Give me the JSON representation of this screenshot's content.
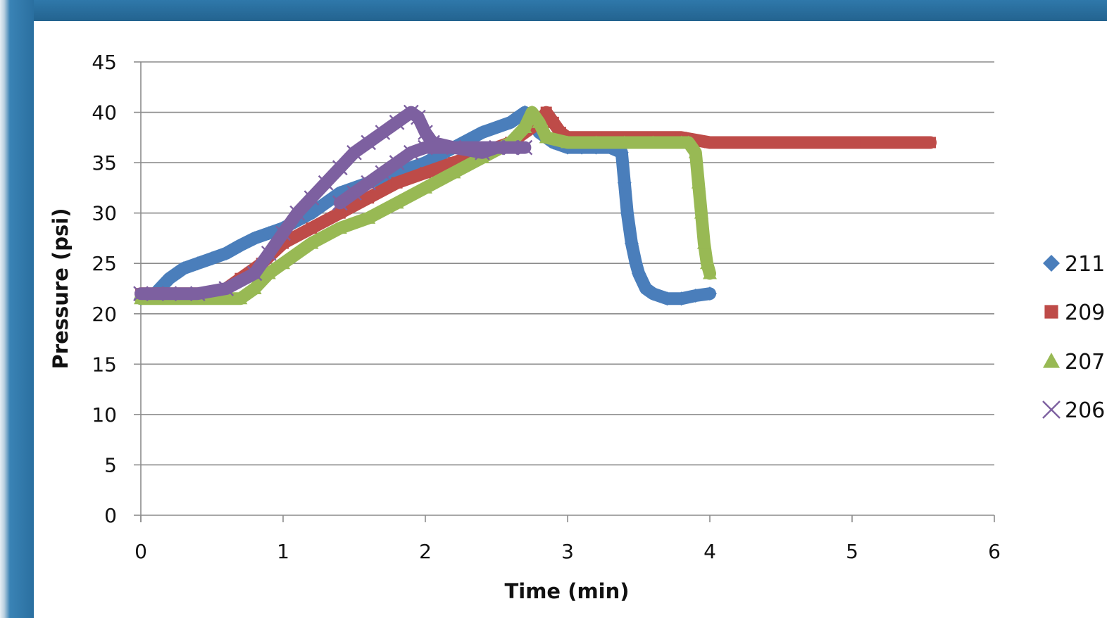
{
  "chart_data": {
    "type": "scatter",
    "xlabel": "Time (min)",
    "ylabel": "Pressure (psi)",
    "xlim": [
      0,
      6
    ],
    "ylim": [
      0,
      45
    ],
    "xticks": [
      "0",
      "1",
      "2",
      "3",
      "4",
      "5",
      "6"
    ],
    "yticks": [
      "0",
      "5",
      "10",
      "15",
      "20",
      "25",
      "30",
      "35",
      "40",
      "45"
    ],
    "grid": "horizontal",
    "legend_position": "right",
    "series": [
      {
        "name": "211",
        "color": "#4a7ebb",
        "marker": "diamond",
        "points": [
          [
            0.0,
            21.5
          ],
          [
            0.1,
            22
          ],
          [
            0.2,
            23.5
          ],
          [
            0.3,
            24.5
          ],
          [
            0.4,
            25
          ],
          [
            0.5,
            25.5
          ],
          [
            0.6,
            26
          ],
          [
            0.7,
            26.8
          ],
          [
            0.8,
            27.5
          ],
          [
            0.9,
            28
          ],
          [
            1.0,
            28.5
          ],
          [
            1.2,
            30
          ],
          [
            1.4,
            32
          ],
          [
            1.6,
            33
          ],
          [
            1.8,
            34
          ],
          [
            2.0,
            35
          ],
          [
            2.2,
            36.5
          ],
          [
            2.4,
            38
          ],
          [
            2.6,
            39
          ],
          [
            2.7,
            40
          ],
          [
            2.8,
            38
          ],
          [
            2.9,
            37
          ],
          [
            3.0,
            36.5
          ],
          [
            3.1,
            36.5
          ],
          [
            3.2,
            36.5
          ],
          [
            3.3,
            36.5
          ],
          [
            3.38,
            36
          ],
          [
            3.4,
            33
          ],
          [
            3.42,
            30
          ],
          [
            3.45,
            27
          ],
          [
            3.48,
            25
          ],
          [
            3.5,
            24
          ],
          [
            3.55,
            22.5
          ],
          [
            3.6,
            22
          ],
          [
            3.7,
            21.5
          ],
          [
            3.8,
            21.5
          ],
          [
            3.9,
            21.8
          ],
          [
            4.0,
            22
          ]
        ]
      },
      {
        "name": "209",
        "color": "#be4b48",
        "marker": "square",
        "points": [
          [
            0.0,
            22
          ],
          [
            0.2,
            22
          ],
          [
            0.4,
            22
          ],
          [
            0.55,
            22
          ],
          [
            0.7,
            23.5
          ],
          [
            0.85,
            25
          ],
          [
            1.0,
            27
          ],
          [
            1.2,
            28.5
          ],
          [
            1.4,
            30
          ],
          [
            1.6,
            31.5
          ],
          [
            1.8,
            33
          ],
          [
            2.0,
            34
          ],
          [
            2.2,
            35
          ],
          [
            2.4,
            36
          ],
          [
            2.6,
            37
          ],
          [
            2.8,
            39
          ],
          [
            2.85,
            40
          ],
          [
            2.9,
            39
          ],
          [
            2.95,
            38
          ],
          [
            3.0,
            37.5
          ],
          [
            3.2,
            37.5
          ],
          [
            3.4,
            37.5
          ],
          [
            3.6,
            37.5
          ],
          [
            3.8,
            37.5
          ],
          [
            4.0,
            37
          ],
          [
            4.2,
            37
          ],
          [
            4.5,
            37
          ],
          [
            4.8,
            37
          ],
          [
            5.1,
            37
          ],
          [
            5.3,
            37
          ],
          [
            5.55,
            37
          ]
        ]
      },
      {
        "name": "207",
        "color": "#98b954",
        "marker": "triangle",
        "points": [
          [
            0.0,
            21.5
          ],
          [
            0.2,
            21.5
          ],
          [
            0.4,
            21.5
          ],
          [
            0.6,
            21.5
          ],
          [
            0.7,
            21.5
          ],
          [
            0.8,
            22.5
          ],
          [
            0.9,
            24
          ],
          [
            1.0,
            25
          ],
          [
            1.2,
            27
          ],
          [
            1.4,
            28.5
          ],
          [
            1.6,
            29.5
          ],
          [
            1.8,
            31
          ],
          [
            2.0,
            32.5
          ],
          [
            2.2,
            34
          ],
          [
            2.4,
            35.5
          ],
          [
            2.6,
            37
          ],
          [
            2.7,
            38.5
          ],
          [
            2.75,
            40
          ],
          [
            2.8,
            39
          ],
          [
            2.85,
            37.5
          ],
          [
            3.0,
            37
          ],
          [
            3.2,
            37
          ],
          [
            3.4,
            37
          ],
          [
            3.6,
            37
          ],
          [
            3.8,
            37
          ],
          [
            3.85,
            37
          ],
          [
            3.9,
            36
          ],
          [
            3.92,
            33
          ],
          [
            3.94,
            30
          ],
          [
            3.96,
            27
          ],
          [
            3.98,
            25
          ],
          [
            4.0,
            24
          ]
        ]
      },
      {
        "name": "206",
        "color": "#7d60a0",
        "marker": "x",
        "points": [
          [
            0.0,
            22
          ],
          [
            0.2,
            22
          ],
          [
            0.4,
            22
          ],
          [
            0.6,
            22.5
          ],
          [
            0.8,
            24
          ],
          [
            0.9,
            26
          ],
          [
            1.0,
            28
          ],
          [
            1.1,
            30
          ],
          [
            1.2,
            31.5
          ],
          [
            1.3,
            33
          ],
          [
            1.4,
            34.5
          ],
          [
            1.5,
            36
          ],
          [
            1.6,
            37
          ],
          [
            1.7,
            38
          ],
          [
            1.8,
            39
          ],
          [
            1.9,
            40
          ],
          [
            1.95,
            39.5
          ],
          [
            2.0,
            38
          ],
          [
            2.05,
            37
          ],
          [
            2.2,
            36.5
          ],
          [
            2.4,
            36
          ],
          [
            2.5,
            36.5
          ],
          [
            2.6,
            36.5
          ],
          [
            2.7,
            36.5
          ],
          [
            2.0,
            36.5
          ],
          [
            1.9,
            36
          ],
          [
            1.8,
            35
          ],
          [
            1.7,
            34
          ],
          [
            1.6,
            33
          ],
          [
            1.5,
            32
          ],
          [
            1.4,
            31
          ]
        ]
      }
    ]
  }
}
